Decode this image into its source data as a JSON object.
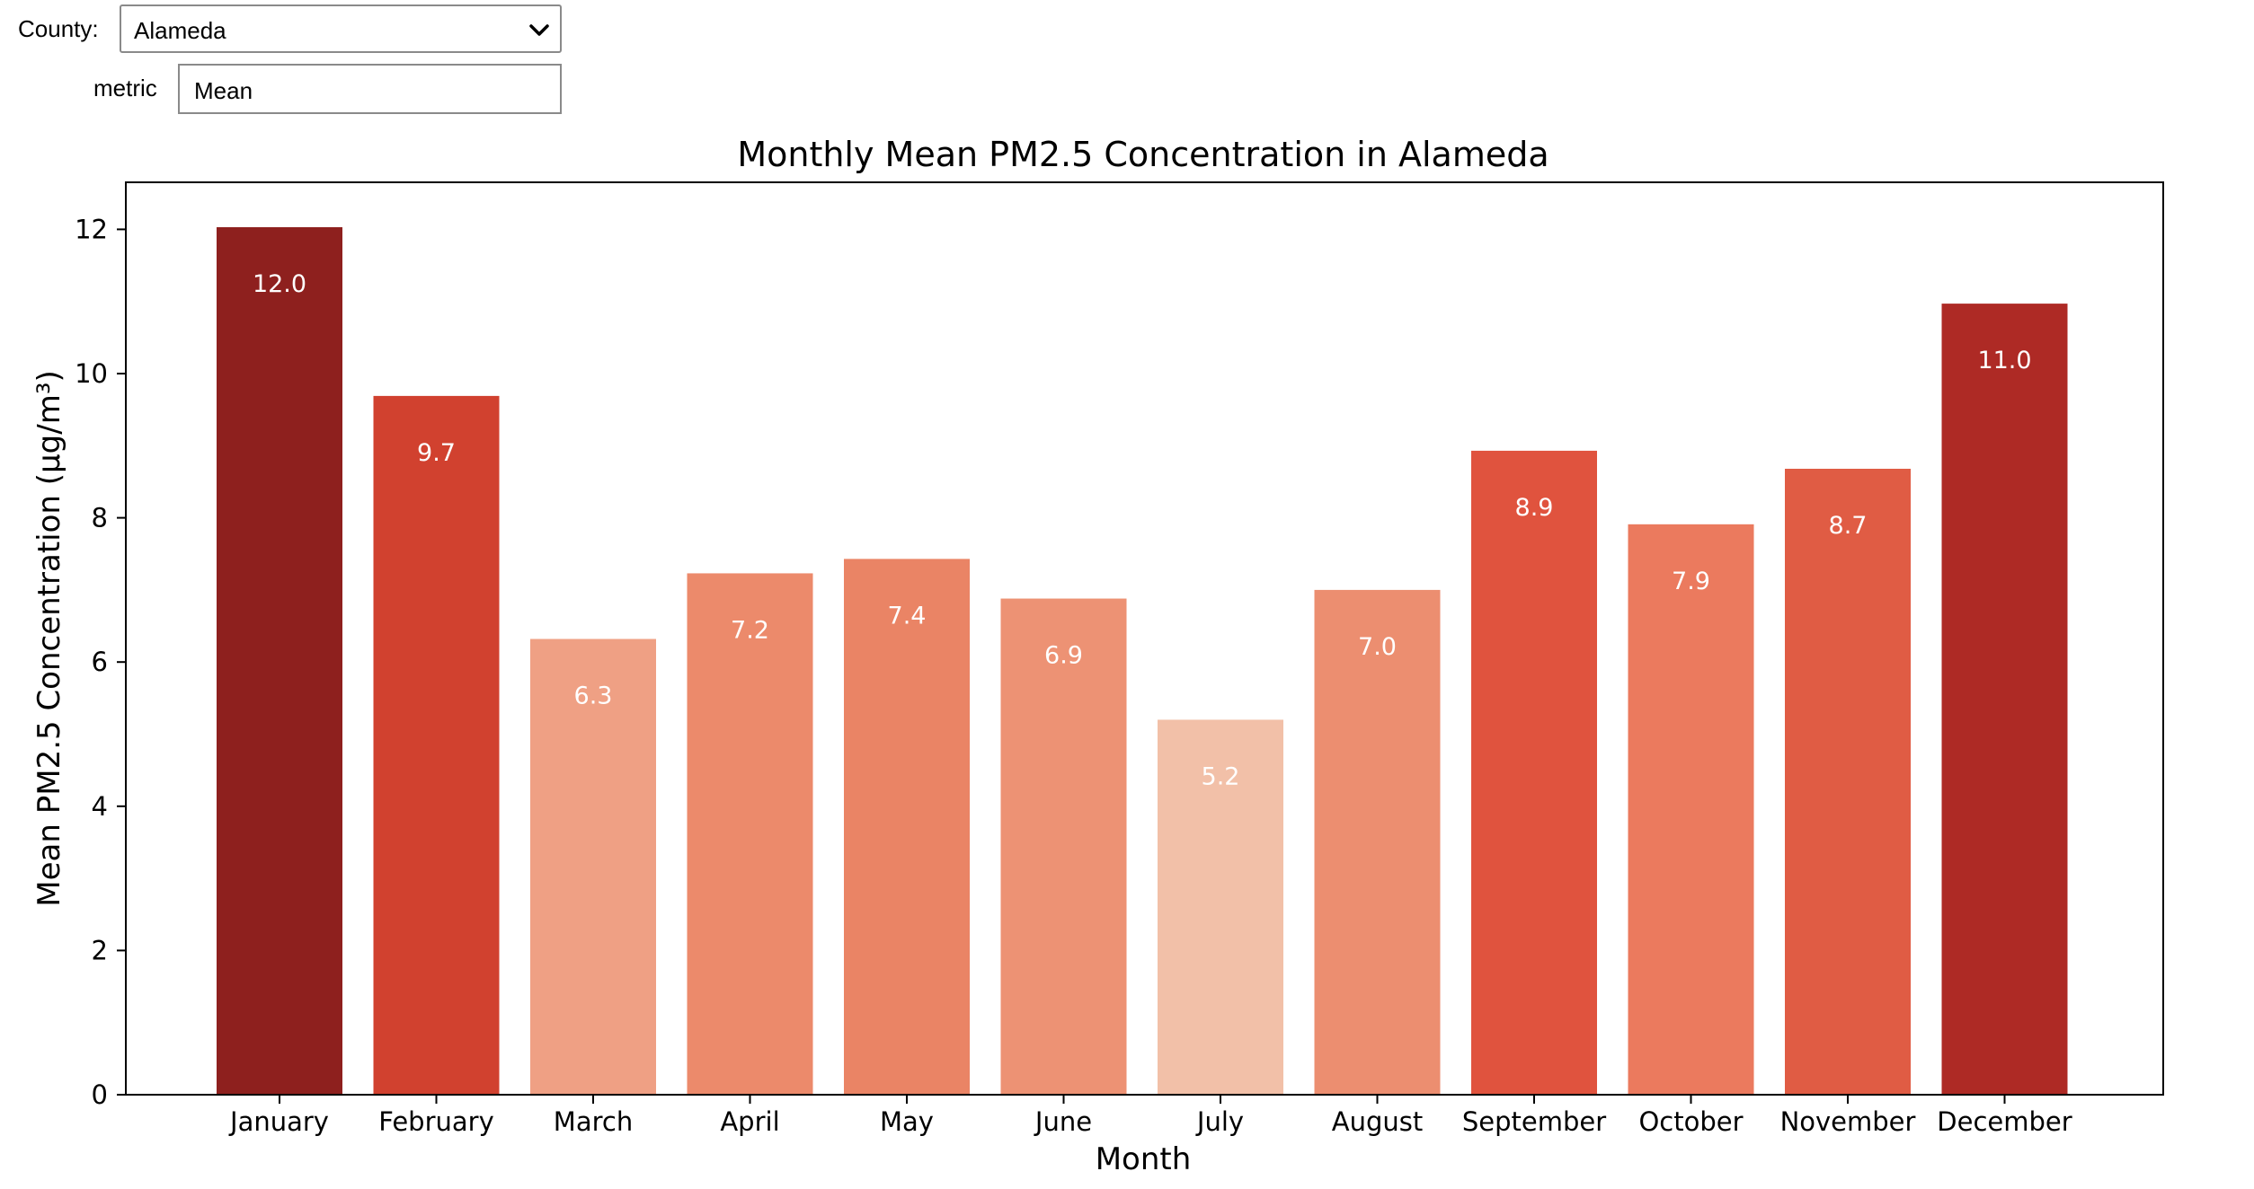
{
  "controls": {
    "county_label": "County:",
    "county_value": "Alameda",
    "metric_label": "metric",
    "metric_value": "Mean"
  },
  "chart_data": {
    "type": "bar",
    "title": "Monthly Mean PM2.5 Concentration in Alameda",
    "xlabel": "Month",
    "ylabel": "Mean PM2.5 Concentration (µg/m³)",
    "ylim": [
      0,
      12.7
    ],
    "yticks": [
      0,
      2,
      4,
      6,
      8,
      10,
      12
    ],
    "categories": [
      "January",
      "February",
      "March",
      "April",
      "May",
      "June",
      "July",
      "August",
      "September",
      "October",
      "November",
      "December"
    ],
    "values": [
      12.03,
      9.69,
      6.32,
      7.23,
      7.43,
      6.88,
      5.2,
      7.0,
      8.93,
      7.91,
      8.68,
      10.97
    ],
    "labels": [
      "12.0",
      "9.7",
      "6.3",
      "7.2",
      "7.4",
      "6.9",
      "5.2",
      "7.0",
      "8.9",
      "7.9",
      "8.7",
      "11.0"
    ],
    "colors": [
      "#8e201e",
      "#d1412f",
      "#efa084",
      "#ec8a6b",
      "#ea8465",
      "#ed9274",
      "#f2c0a8",
      "#ec8e70",
      "#e0533e",
      "#eb7a5e",
      "#e05c44",
      "#ae2a25"
    ],
    "grid": false
  }
}
